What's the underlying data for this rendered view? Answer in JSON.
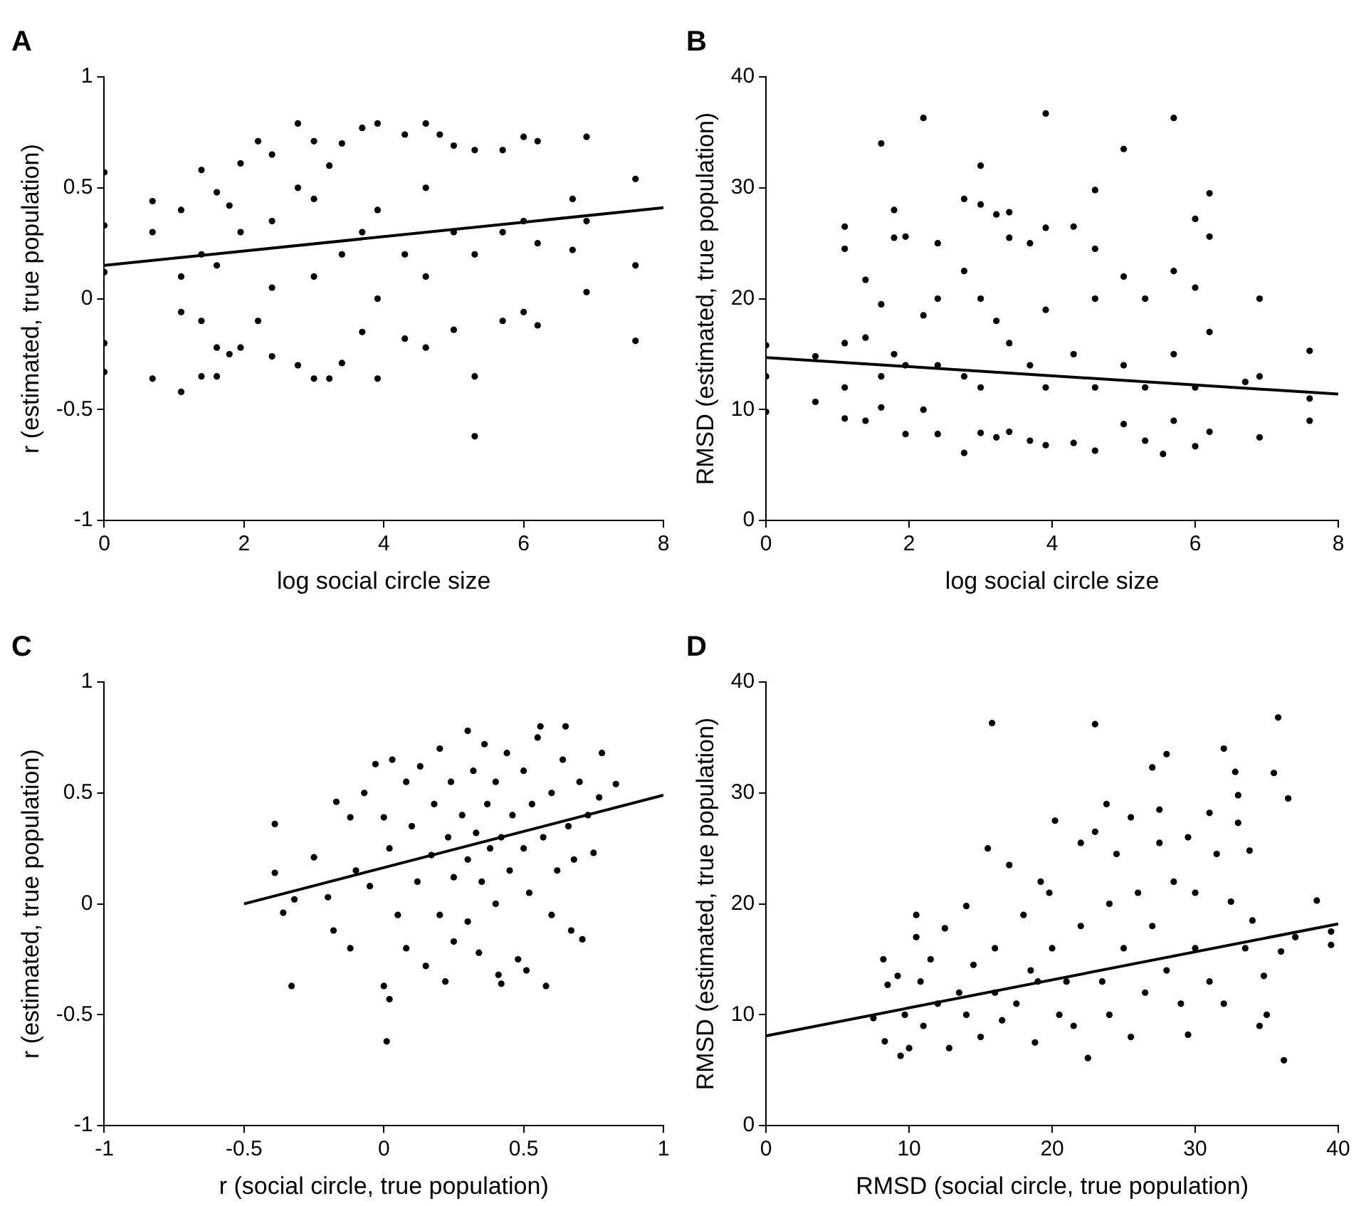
{
  "chart_data": [
    {
      "type": "scatter",
      "title": "A",
      "xlabel": "log social circle size",
      "ylabel": "r (estimated, true population)",
      "xlim": [
        0,
        8
      ],
      "xticks": [
        0,
        2,
        4,
        6,
        8
      ],
      "ylim": [
        -1,
        1
      ],
      "yticks": [
        -1,
        -0.5,
        0,
        0.5,
        1
      ],
      "marker": "circle",
      "series": [
        {
          "type": "scatter",
          "color": "#000000",
          "x": [
            0,
            0,
            0,
            0,
            0,
            0.69,
            0.69,
            0.69,
            1.1,
            1.1,
            1.1,
            1.1,
            1.39,
            1.39,
            1.39,
            1.39,
            1.61,
            1.61,
            1.61,
            1.61,
            1.79,
            1.79,
            1.95,
            1.95,
            1.95,
            2.2,
            2.2,
            2.4,
            2.4,
            2.4,
            2.4,
            2.77,
            2.77,
            2.77,
            3.0,
            3.0,
            3.0,
            3.0,
            3.22,
            3.22,
            3.4,
            3.4,
            3.4,
            3.69,
            3.69,
            3.69,
            3.91,
            3.91,
            3.91,
            3.91,
            4.3,
            4.3,
            4.3,
            4.6,
            4.6,
            4.6,
            4.6,
            4.8,
            5.0,
            5.0,
            5.0,
            5.3,
            5.3,
            5.3,
            5.3,
            5.7,
            5.7,
            5.7,
            6.0,
            6.0,
            6.0,
            6.2,
            6.2,
            6.2,
            6.7,
            6.7,
            6.9,
            6.9,
            6.9,
            7.6,
            7.6,
            7.6
          ],
          "values": [
            0.57,
            0.33,
            0.12,
            -0.2,
            -0.33,
            0.44,
            0.3,
            -0.36,
            0.4,
            0.1,
            -0.06,
            -0.42,
            0.58,
            0.2,
            -0.1,
            -0.35,
            0.48,
            0.15,
            -0.22,
            -0.35,
            0.42,
            -0.25,
            0.61,
            0.3,
            -0.22,
            0.71,
            -0.1,
            0.65,
            0.35,
            0.05,
            -0.26,
            0.79,
            0.5,
            -0.3,
            0.71,
            0.45,
            0.1,
            -0.36,
            0.6,
            -0.36,
            0.7,
            0.2,
            -0.29,
            0.77,
            0.3,
            -0.15,
            0.79,
            0.4,
            0.0,
            -0.36,
            0.74,
            0.2,
            -0.18,
            0.79,
            0.5,
            0.1,
            -0.22,
            0.74,
            0.69,
            0.3,
            -0.14,
            0.67,
            0.2,
            -0.35,
            -0.62,
            0.67,
            0.3,
            -0.1,
            0.73,
            0.35,
            -0.06,
            0.71,
            0.25,
            -0.12,
            0.45,
            0.22,
            0.73,
            0.35,
            0.03,
            0.54,
            0.15,
            -0.19
          ]
        },
        {
          "type": "line",
          "marker": "none",
          "color": "#000000",
          "x": [
            0,
            8
          ],
          "values": [
            0.15,
            0.41
          ]
        }
      ]
    },
    {
      "type": "scatter",
      "title": "B",
      "xlabel": "log social circle size",
      "ylabel": "RMSD (estimated, true population)",
      "xlim": [
        0,
        8
      ],
      "xticks": [
        0,
        2,
        4,
        6,
        8
      ],
      "ylim": [
        0,
        40
      ],
      "yticks": [
        0,
        10,
        20,
        30,
        40
      ],
      "marker": "circle",
      "series": [
        {
          "type": "scatter",
          "color": "#000000",
          "x": [
            0,
            0,
            0,
            0.69,
            0.69,
            1.1,
            1.1,
            1.1,
            1.1,
            1.1,
            1.39,
            1.39,
            1.39,
            1.61,
            1.61,
            1.61,
            1.61,
            1.79,
            1.79,
            1.79,
            1.95,
            1.95,
            1.95,
            2.2,
            2.2,
            2.2,
            2.4,
            2.4,
            2.4,
            2.4,
            2.77,
            2.77,
            2.77,
            2.77,
            3.0,
            3.0,
            3.0,
            3.0,
            3.0,
            3.22,
            3.22,
            3.22,
            3.4,
            3.4,
            3.4,
            3.4,
            3.69,
            3.69,
            3.69,
            3.91,
            3.91,
            3.91,
            3.91,
            3.91,
            4.3,
            4.3,
            4.3,
            4.6,
            4.6,
            4.6,
            4.6,
            4.6,
            5.0,
            5.0,
            5.0,
            5.0,
            5.3,
            5.3,
            5.3,
            5.55,
            5.7,
            5.7,
            5.7,
            5.7,
            6.0,
            6.0,
            6.0,
            6.0,
            6.2,
            6.2,
            6.2,
            6.2,
            6.7,
            6.9,
            6.9,
            6.9,
            7.6,
            7.6,
            7.6
          ],
          "values": [
            15.8,
            13,
            9.8,
            14.8,
            10.7,
            26.5,
            24.5,
            16,
            12,
            9.2,
            21.7,
            16.5,
            9,
            34,
            19.5,
            13,
            10.2,
            28,
            25.5,
            15,
            25.6,
            14,
            7.8,
            36.3,
            18.5,
            10,
            25,
            20,
            14,
            7.8,
            29,
            22.5,
            13,
            6.1,
            32,
            28.5,
            20,
            12,
            7.9,
            27.6,
            18,
            7.5,
            27.8,
            25.5,
            16,
            8,
            25,
            14,
            7.2,
            36.7,
            26.4,
            19,
            12,
            6.8,
            26.5,
            15,
            7,
            29.8,
            24.5,
            20,
            12,
            6.3,
            33.5,
            22,
            14,
            8.7,
            20,
            12,
            7.2,
            6,
            36.3,
            22.5,
            15,
            9,
            27.2,
            21,
            12,
            6.7,
            29.5,
            25.6,
            17,
            8,
            12.5,
            20,
            13,
            7.5,
            15.3,
            11,
            9
          ]
        },
        {
          "type": "line",
          "marker": "none",
          "color": "#000000",
          "x": [
            0,
            8
          ],
          "values": [
            14.7,
            11.4
          ]
        }
      ]
    },
    {
      "type": "scatter",
      "title": "C",
      "xlabel": "r (social circle, true population)",
      "ylabel": "r (estimated, true population)",
      "xlim": [
        -1,
        1
      ],
      "xticks": [
        -1,
        -0.5,
        0,
        0.5,
        1
      ],
      "ylim": [
        -1,
        1
      ],
      "yticks": [
        -1,
        -0.5,
        0,
        0.5,
        1
      ],
      "marker": "circle",
      "series": [
        {
          "type": "scatter",
          "color": "#000000",
          "x": [
            -0.39,
            -0.39,
            -0.36,
            -0.33,
            -0.32,
            -0.25,
            -0.2,
            -0.18,
            -0.17,
            -0.12,
            -0.12,
            -0.1,
            -0.07,
            -0.05,
            -0.03,
            0.0,
            0.0,
            0.02,
            0.01,
            0.02,
            0.03,
            0.05,
            0.08,
            0.08,
            0.1,
            0.12,
            0.13,
            0.15,
            0.17,
            0.18,
            0.2,
            0.2,
            0.22,
            0.23,
            0.24,
            0.25,
            0.25,
            0.28,
            0.3,
            0.3,
            0.3,
            0.32,
            0.33,
            0.34,
            0.35,
            0.36,
            0.37,
            0.38,
            0.4,
            0.4,
            0.41,
            0.42,
            0.42,
            0.44,
            0.45,
            0.46,
            0.48,
            0.5,
            0.5,
            0.51,
            0.52,
            0.53,
            0.55,
            0.56,
            0.57,
            0.58,
            0.6,
            0.6,
            0.62,
            0.64,
            0.65,
            0.66,
            0.67,
            0.68,
            0.7,
            0.71,
            0.73,
            0.75,
            0.77,
            0.78,
            0.83
          ],
          "values": [
            0.36,
            0.14,
            -0.04,
            -0.37,
            0.02,
            0.21,
            0.03,
            -0.12,
            0.46,
            0.39,
            -0.2,
            0.15,
            0.5,
            0.08,
            0.63,
            0.39,
            -0.37,
            -0.43,
            -0.62,
            0.25,
            0.65,
            -0.05,
            0.55,
            -0.2,
            0.35,
            0.1,
            0.62,
            -0.28,
            0.22,
            0.45,
            0.7,
            -0.05,
            -0.35,
            0.3,
            0.55,
            0.12,
            -0.17,
            0.4,
            0.78,
            0.2,
            -0.08,
            0.6,
            0.32,
            -0.22,
            0.1,
            0.72,
            0.45,
            0.25,
            0.55,
            0.0,
            -0.32,
            -0.36,
            0.3,
            0.68,
            0.15,
            0.4,
            -0.25,
            0.6,
            0.25,
            -0.3,
            0.05,
            0.45,
            0.75,
            0.8,
            0.3,
            -0.37,
            0.5,
            -0.05,
            0.15,
            0.65,
            0.8,
            0.35,
            -0.12,
            0.2,
            0.55,
            -0.16,
            0.4,
            0.23,
            0.48,
            0.68,
            0.54
          ]
        },
        {
          "type": "line",
          "marker": "none",
          "color": "#000000",
          "x": [
            -0.5,
            1
          ],
          "values": [
            0,
            0.49
          ]
        }
      ]
    },
    {
      "type": "scatter",
      "title": "D",
      "xlabel": "RMSD (social circle, true population)",
      "ylabel": "RMSD (estimated, true population)",
      "xlim": [
        0,
        40
      ],
      "xticks": [
        0,
        10,
        20,
        30,
        40
      ],
      "ylim": [
        0,
        40
      ],
      "yticks": [
        0,
        10,
        20,
        30,
        40
      ],
      "marker": "circle",
      "series": [
        {
          "type": "scatter",
          "color": "#000000",
          "x": [
            7.5,
            8.2,
            8.3,
            8.5,
            9.2,
            9.4,
            9.7,
            10,
            10.5,
            10.5,
            10.8,
            11,
            11.5,
            12,
            12.5,
            12.8,
            13.5,
            14,
            14,
            14.5,
            15,
            15.5,
            15.8,
            16,
            16,
            16.5,
            17,
            17.5,
            18,
            18.5,
            18.8,
            19,
            19.2,
            19.8,
            20,
            20.2,
            20.5,
            21,
            21.5,
            22,
            22,
            22.5,
            23,
            23,
            23.5,
            23.8,
            24,
            24,
            24.5,
            25,
            25.5,
            25.5,
            26,
            26.5,
            27,
            27,
            27.5,
            27.5,
            28,
            28,
            28.5,
            29,
            29.5,
            29.5,
            30,
            30,
            31,
            31,
            31.5,
            32,
            32,
            32.5,
            32.8,
            33,
            33,
            33.5,
            33.8,
            34,
            34.5,
            34.8,
            35,
            35.5,
            35.8,
            36,
            36.2,
            36.5,
            37,
            38.5,
            39.5,
            39.5
          ],
          "values": [
            9.7,
            15,
            7.6,
            12.7,
            13.5,
            6.3,
            10,
            7,
            19,
            17,
            13,
            9,
            15,
            11,
            17.8,
            7,
            12,
            19.8,
            10,
            14.5,
            8,
            25,
            36.3,
            12,
            16,
            9.5,
            23.5,
            11,
            19,
            14,
            7.5,
            13,
            22,
            21,
            16,
            27.5,
            10,
            13,
            9,
            25.5,
            18,
            6.1,
            36.2,
            26.5,
            13,
            29,
            20,
            10,
            24.5,
            16,
            27.8,
            8,
            21,
            12,
            32.3,
            18,
            28.5,
            25.5,
            33.5,
            14,
            22,
            11,
            26,
            8.2,
            16,
            21,
            28.2,
            13,
            24.5,
            34,
            11,
            20.2,
            31.9,
            29.8,
            27.3,
            16,
            24.8,
            18.5,
            9,
            13.5,
            10,
            31.8,
            36.8,
            15.7,
            5.9,
            29.5,
            17,
            20.3,
            17.5,
            16.3
          ]
        },
        {
          "type": "line",
          "marker": "none",
          "color": "#000000",
          "x": [
            0,
            40
          ],
          "values": [
            8.1,
            18.2
          ]
        }
      ]
    }
  ]
}
